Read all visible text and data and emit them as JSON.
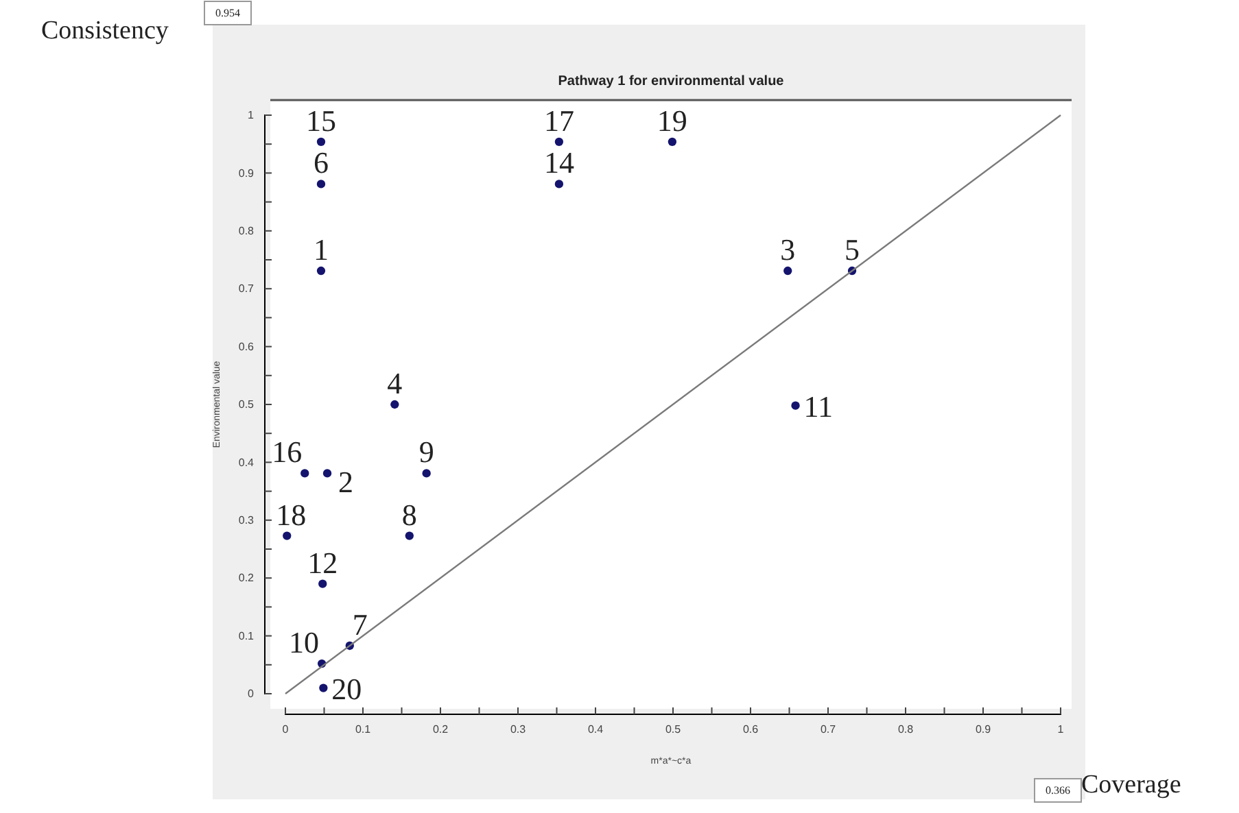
{
  "chart_data": {
    "type": "scatter",
    "title": "Pathway 1 for environmental value",
    "xlabel": "m*a*~c*a",
    "ylabel": "Environmental value",
    "x": [
      0.046,
      0.054,
      0.648,
      0.141,
      0.731,
      0.046,
      0.083,
      0.16,
      0.182,
      0.047,
      0.658,
      0.048,
      0.353,
      0.046,
      0.025,
      0.353,
      0.002,
      0.499,
      0.049
    ],
    "series": [
      {
        "color": "#14146e",
        "values": [
          0.731,
          0.381,
          0.731,
          0.5,
          0.731,
          0.881,
          0.083,
          0.273,
          0.381,
          0.052,
          0.498,
          0.19,
          0.881,
          0.954,
          0.381,
          0.954,
          0.273,
          0.954,
          0.01
        ]
      },
      {
        "type": "line",
        "marker": "none",
        "color": "#7a7a7a",
        "x": [
          0,
          1
        ],
        "values": [
          0,
          1
        ]
      }
    ],
    "marker": "circle",
    "grid": false,
    "xlim": [
      0,
      1
    ],
    "ylim": [
      0,
      1
    ],
    "xticks": [
      0,
      {
        "value": 0.05,
        "label": null
      },
      0.1,
      {
        "value": 0.15,
        "label": null
      },
      0.2,
      {
        "value": 0.25,
        "label": null
      },
      0.3,
      {
        "value": 0.35,
        "label": null
      },
      0.4,
      {
        "value": 0.45,
        "label": null
      },
      0.5,
      {
        "value": 0.55,
        "label": null
      },
      0.6,
      {
        "value": 0.65,
        "label": null
      },
      0.7,
      {
        "value": 0.75,
        "label": null
      },
      0.8,
      {
        "value": 0.85,
        "label": null
      },
      0.9,
      {
        "value": 0.95,
        "label": null
      },
      1
    ],
    "yticks": [
      0,
      {
        "value": 0.05,
        "label": null
      },
      0.1,
      {
        "value": 0.15,
        "label": null
      },
      0.2,
      {
        "value": 0.25,
        "label": null
      },
      0.3,
      {
        "value": 0.35,
        "label": null
      },
      0.4,
      {
        "value": 0.45,
        "label": null
      },
      0.5,
      {
        "value": 0.55,
        "label": null
      },
      0.6,
      {
        "value": 0.65,
        "label": null
      },
      0.7,
      {
        "value": 0.75,
        "label": null
      },
      0.8,
      {
        "value": 0.85,
        "label": null
      },
      0.9,
      {
        "value": 0.95,
        "label": null
      },
      1
    ],
    "annotations": [
      "Consistency",
      "0.954",
      "0.366",
      "Coverage",
      {
        "text": "1",
        "x": 0.046,
        "y": 0.731
      },
      {
        "text": "2",
        "x": 0.054,
        "y": 0.381
      },
      {
        "text": "3",
        "x": 0.648,
        "y": 0.731
      },
      {
        "text": "4",
        "x": 0.141,
        "y": 0.5
      },
      {
        "text": "5",
        "x": 0.731,
        "y": 0.731
      },
      {
        "text": "6",
        "x": 0.046,
        "y": 0.881
      },
      {
        "text": "7",
        "x": 0.083,
        "y": 0.083
      },
      {
        "text": "8",
        "x": 0.16,
        "y": 0.273
      },
      {
        "text": "9",
        "x": 0.182,
        "y": 0.381
      },
      {
        "text": "10",
        "x": 0.047,
        "y": 0.052
      },
      {
        "text": "11",
        "x": 0.658,
        "y": 0.498
      },
      {
        "text": "12",
        "x": 0.048,
        "y": 0.19
      },
      {
        "text": "14",
        "x": 0.353,
        "y": 0.881
      },
      {
        "text": "15",
        "x": 0.046,
        "y": 0.954
      },
      {
        "text": "16",
        "x": 0.025,
        "y": 0.381
      },
      {
        "text": "17",
        "x": 0.353,
        "y": 0.954
      },
      {
        "text": "18",
        "x": 0.002,
        "y": 0.273
      },
      {
        "text": "19",
        "x": 0.499,
        "y": 0.954
      },
      {
        "text": "20",
        "x": 0.049,
        "y": 0.01
      }
    ]
  }
}
